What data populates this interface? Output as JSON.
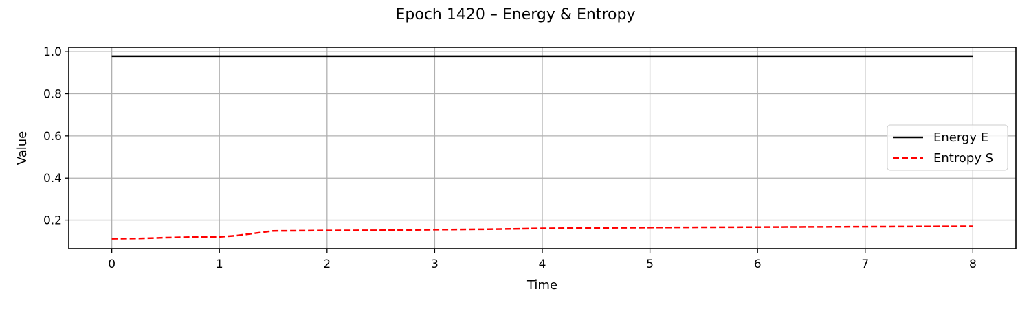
{
  "chart_data": {
    "type": "line",
    "title": "Epoch 1420 – Energy & Entropy",
    "xlabel": "Time",
    "ylabel": "Value",
    "xlim": [
      -0.4,
      8.4
    ],
    "ylim": [
      0.065,
      1.02
    ],
    "xticks": [
      0,
      1,
      2,
      3,
      4,
      5,
      6,
      7,
      8
    ],
    "yticks": [
      0.2,
      0.4,
      0.6,
      0.8,
      1.0
    ],
    "xtick_labels": [
      "0",
      "1",
      "2",
      "3",
      "4",
      "5",
      "6",
      "7",
      "8"
    ],
    "ytick_labels": [
      "0.2",
      "0.4",
      "0.6",
      "0.8",
      "1.0"
    ],
    "grid": true,
    "legend_position": "center-right",
    "series": [
      {
        "name": "Energy E",
        "color": "#000000",
        "style": "solid",
        "x": [
          0,
          1,
          2,
          3,
          4,
          5,
          6,
          7,
          8
        ],
        "y": [
          0.978,
          0.978,
          0.978,
          0.978,
          0.978,
          0.978,
          0.978,
          0.978,
          0.978
        ]
      },
      {
        "name": "Entropy S",
        "color": "#ff0000",
        "style": "dashed",
        "x": [
          0,
          0.25,
          0.5,
          0.75,
          1.0,
          1.15,
          1.3,
          1.5,
          2,
          2.5,
          3,
          3.5,
          4,
          4.5,
          5,
          5.5,
          6,
          6.5,
          7,
          7.5,
          8
        ],
        "y": [
          0.112,
          0.113,
          0.117,
          0.12,
          0.121,
          0.126,
          0.136,
          0.149,
          0.151,
          0.152,
          0.155,
          0.157,
          0.161,
          0.163,
          0.165,
          0.166,
          0.167,
          0.168,
          0.169,
          0.17,
          0.171
        ]
      }
    ]
  }
}
